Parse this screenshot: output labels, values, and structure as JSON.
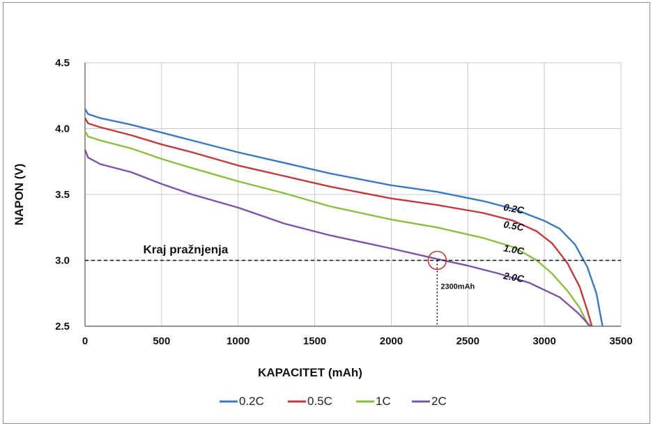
{
  "chart_data": {
    "type": "line",
    "xlabel": "KAPACITET (mAh)",
    "ylabel": "NAPON (V)",
    "xlim": [
      0,
      3500
    ],
    "ylim": [
      2.5,
      4.5
    ],
    "x_ticks": [
      "0",
      "500",
      "1000",
      "1500",
      "2000",
      "2500",
      "3000",
      "3500"
    ],
    "y_ticks": [
      "2.5",
      "3.0",
      "3.5",
      "4.0",
      "4.5"
    ],
    "grid": true,
    "legend_position": "bottom",
    "series": [
      {
        "name": "0.2C",
        "label": "0.2C",
        "color": "#3b78c2",
        "points": [
          [
            0,
            4.15
          ],
          [
            20,
            4.11
          ],
          [
            100,
            4.08
          ],
          [
            300,
            4.03
          ],
          [
            500,
            3.97
          ],
          [
            700,
            3.91
          ],
          [
            1000,
            3.82
          ],
          [
            1300,
            3.74
          ],
          [
            1600,
            3.66
          ],
          [
            2000,
            3.57
          ],
          [
            2300,
            3.52
          ],
          [
            2600,
            3.45
          ],
          [
            2800,
            3.39
          ],
          [
            3000,
            3.3
          ],
          [
            3100,
            3.24
          ],
          [
            3200,
            3.12
          ],
          [
            3280,
            2.95
          ],
          [
            3340,
            2.75
          ],
          [
            3380,
            2.5
          ]
        ]
      },
      {
        "name": "0.5C",
        "label": "0.5C",
        "color": "#c0393b",
        "points": [
          [
            0,
            4.08
          ],
          [
            20,
            4.04
          ],
          [
            100,
            4.01
          ],
          [
            300,
            3.95
          ],
          [
            500,
            3.88
          ],
          [
            700,
            3.82
          ],
          [
            1000,
            3.72
          ],
          [
            1300,
            3.64
          ],
          [
            1600,
            3.56
          ],
          [
            2000,
            3.47
          ],
          [
            2300,
            3.42
          ],
          [
            2600,
            3.36
          ],
          [
            2800,
            3.3
          ],
          [
            2950,
            3.22
          ],
          [
            3050,
            3.13
          ],
          [
            3150,
            2.98
          ],
          [
            3230,
            2.8
          ],
          [
            3280,
            2.62
          ],
          [
            3310,
            2.5
          ]
        ]
      },
      {
        "name": "1C",
        "label": "1.0C",
        "color": "#8bbd3f",
        "points": [
          [
            0,
            3.98
          ],
          [
            20,
            3.94
          ],
          [
            100,
            3.91
          ],
          [
            300,
            3.85
          ],
          [
            500,
            3.77
          ],
          [
            700,
            3.7
          ],
          [
            1000,
            3.6
          ],
          [
            1300,
            3.51
          ],
          [
            1600,
            3.41
          ],
          [
            2000,
            3.31
          ],
          [
            2300,
            3.25
          ],
          [
            2600,
            3.17
          ],
          [
            2800,
            3.1
          ],
          [
            2950,
            3.0
          ],
          [
            3050,
            2.9
          ],
          [
            3150,
            2.77
          ],
          [
            3230,
            2.64
          ],
          [
            3290,
            2.5
          ]
        ]
      },
      {
        "name": "2C",
        "label": "2.0C",
        "color": "#7b52a8",
        "points": [
          [
            0,
            3.84
          ],
          [
            20,
            3.78
          ],
          [
            100,
            3.73
          ],
          [
            300,
            3.67
          ],
          [
            500,
            3.58
          ],
          [
            700,
            3.5
          ],
          [
            1000,
            3.4
          ],
          [
            1300,
            3.28
          ],
          [
            1600,
            3.19
          ],
          [
            2000,
            3.09
          ],
          [
            2300,
            3.01
          ],
          [
            2500,
            2.96
          ],
          [
            2700,
            2.9
          ],
          [
            2900,
            2.83
          ],
          [
            3100,
            2.72
          ],
          [
            3220,
            2.6
          ],
          [
            3300,
            2.5
          ]
        ]
      }
    ],
    "annotations": {
      "end_label": "Kraj pražnjenja",
      "end_voltage": 3.0,
      "marker_x": 2300,
      "marker_label": "2300mAh"
    }
  }
}
